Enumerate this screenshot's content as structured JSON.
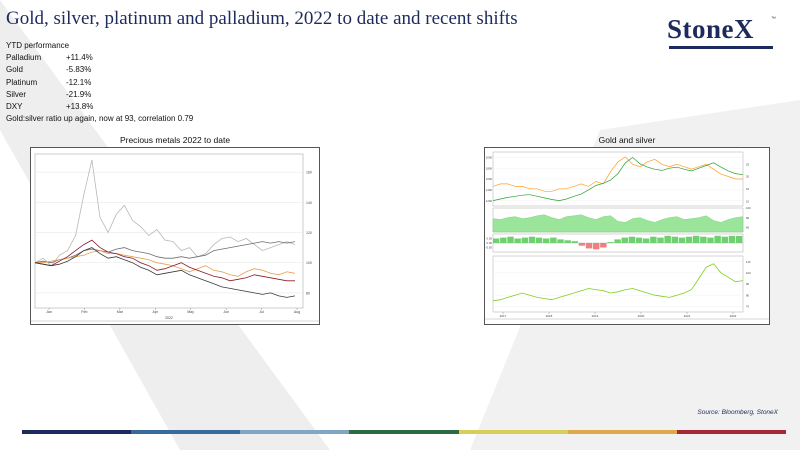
{
  "slide": {
    "title": "Gold, silver, platinum and palladium, 2022 to date and recent shifts",
    "logo": "StoneX",
    "logo_tm": "™",
    "source": "Source: Bloomberg, StoneX",
    "footer_colors": [
      "#1d2a5b",
      "#3a6a9a",
      "#7fa6c4",
      "#2e6b45",
      "#d6cf5a",
      "#e0a84a",
      "#a4283a"
    ]
  },
  "performance": {
    "header": "YTD performance",
    "rows": [
      {
        "metal": "Palladium",
        "value": "+11.4%"
      },
      {
        "metal": "Gold",
        "value": "-5.83%"
      },
      {
        "metal": "Platinum",
        "value": "-12.1%"
      },
      {
        "metal": "Silver",
        "value": "-21.9%"
      },
      {
        "metal": "DXY",
        "value": "+13.8%"
      }
    ],
    "footnote": "Gold:silver ratio up again, now at 93, correlation 0.79"
  },
  "chart_data": [
    {
      "type": "line",
      "title": "Precious metals 2022 to date",
      "x_labels": [
        "Jan",
        "Feb",
        "Mar",
        "Apr",
        "May",
        "Jun",
        "Jul",
        "Aug"
      ],
      "x_footer": "2022",
      "y_ticks": [
        80,
        100,
        120,
        140,
        160
      ],
      "ylim": [
        70,
        172
      ],
      "series": [
        {
          "name": "",
          "color": "#b8b8b8",
          "values": [
            100,
            103,
            98,
            105,
            108,
            118,
            145,
            168,
            130,
            120,
            132,
            138,
            128,
            124,
            118,
            122,
            115,
            114,
            108,
            110,
            104,
            106,
            112,
            116,
            117,
            114,
            116,
            112,
            108,
            110,
            112,
            114,
            112
          ]
        },
        {
          "name": "",
          "color": "#6e6e6e",
          "values": [
            100,
            101,
            100,
            102,
            103,
            105,
            108,
            109,
            108,
            107,
            109,
            110,
            108,
            107,
            106,
            104,
            103,
            103,
            104,
            103,
            104,
            105,
            108,
            109,
            110,
            111,
            112,
            113,
            114,
            113,
            114,
            113,
            114
          ]
        },
        {
          "name": "",
          "color": "#e8a050",
          "values": [
            100,
            100,
            101,
            102,
            103,
            104,
            105,
            107,
            108,
            106,
            106,
            105,
            104,
            103,
            102,
            100,
            99,
            98,
            96,
            94,
            96,
            98,
            95,
            94,
            92,
            91,
            94,
            96,
            95,
            93,
            92,
            94,
            93
          ]
        },
        {
          "name": "",
          "color": "#8c1a2a",
          "values": [
            100,
            99,
            98,
            101,
            104,
            108,
            112,
            115,
            110,
            107,
            106,
            104,
            103,
            100,
            98,
            95,
            96,
            98,
            100,
            97,
            95,
            93,
            91,
            90,
            88,
            89,
            90,
            92,
            91,
            90,
            89,
            88,
            88
          ]
        },
        {
          "name": "",
          "color": "#3a3a3a",
          "values": [
            100,
            99,
            98,
            99,
            101,
            104,
            108,
            110,
            106,
            103,
            104,
            102,
            100,
            97,
            95,
            92,
            93,
            94,
            95,
            92,
            90,
            88,
            86,
            84,
            83,
            82,
            81,
            80,
            79,
            80,
            78,
            77,
            78
          ]
        }
      ]
    },
    {
      "type": "line",
      "title": "Gold and silver",
      "x_labels": [
        "2017",
        "2018",
        "2019",
        "2020",
        "2021",
        "2022"
      ],
      "panels": [
        {
          "name": "",
          "series": [
            {
              "name": "",
              "color": "#2ca02c",
              "values": [
                1200,
                1230,
                1260,
                1280,
                1300,
                1310,
                1280,
                1250,
                1220,
                1200,
                1230,
                1280,
                1320,
                1400,
                1480,
                1520,
                1580,
                1700,
                1900,
                2000,
                1880,
                1820,
                1780,
                1760,
                1800,
                1820,
                1780,
                1750,
                1800,
                1850,
                1900,
                1820,
                1750,
                1700,
                1680
              ]
            },
            {
              "name": "",
              "color": "#ff9f2a",
              "values": [
                16,
                17,
                17,
                16,
                16,
                15,
                15,
                14,
                14,
                15,
                15,
                16,
                17,
                16,
                18,
                17,
                22,
                26,
                28,
                25,
                24,
                26,
                27,
                25,
                24,
                25,
                24,
                23,
                24,
                25,
                23,
                21,
                20,
                19,
                19
              ]
            }
          ]
        },
        {
          "name": "",
          "values": [
            78,
            76,
            80,
            82,
            78,
            80,
            84,
            86,
            80,
            76,
            82,
            84,
            86,
            80,
            76,
            82,
            84,
            72,
            70,
            78,
            80,
            74,
            70,
            76,
            80,
            82,
            76,
            78,
            80,
            84,
            74,
            70,
            76,
            80,
            82
          ]
        },
        {
          "name": "",
          "values": [
            0.5,
            0.6,
            0.7,
            0.5,
            0.6,
            0.7,
            0.6,
            0.5,
            0.6,
            0.4,
            0.3,
            0.2,
            -0.3,
            -0.6,
            -0.7,
            -0.5,
            0.1,
            0.4,
            0.6,
            0.7,
            0.6,
            0.5,
            0.7,
            0.6,
            0.8,
            0.7,
            0.6,
            0.7,
            0.8,
            0.7,
            0.6,
            0.8,
            0.7,
            0.8,
            0.79
          ]
        },
        {
          "name": "",
          "color": "#7fd11b",
          "values": [
            75,
            76,
            78,
            80,
            82,
            80,
            78,
            77,
            76,
            78,
            80,
            82,
            84,
            86,
            85,
            84,
            82,
            83,
            85,
            86,
            84,
            82,
            80,
            79,
            78,
            80,
            82,
            85,
            95,
            105,
            108,
            100,
            96,
            92,
            93
          ]
        }
      ]
    }
  ]
}
